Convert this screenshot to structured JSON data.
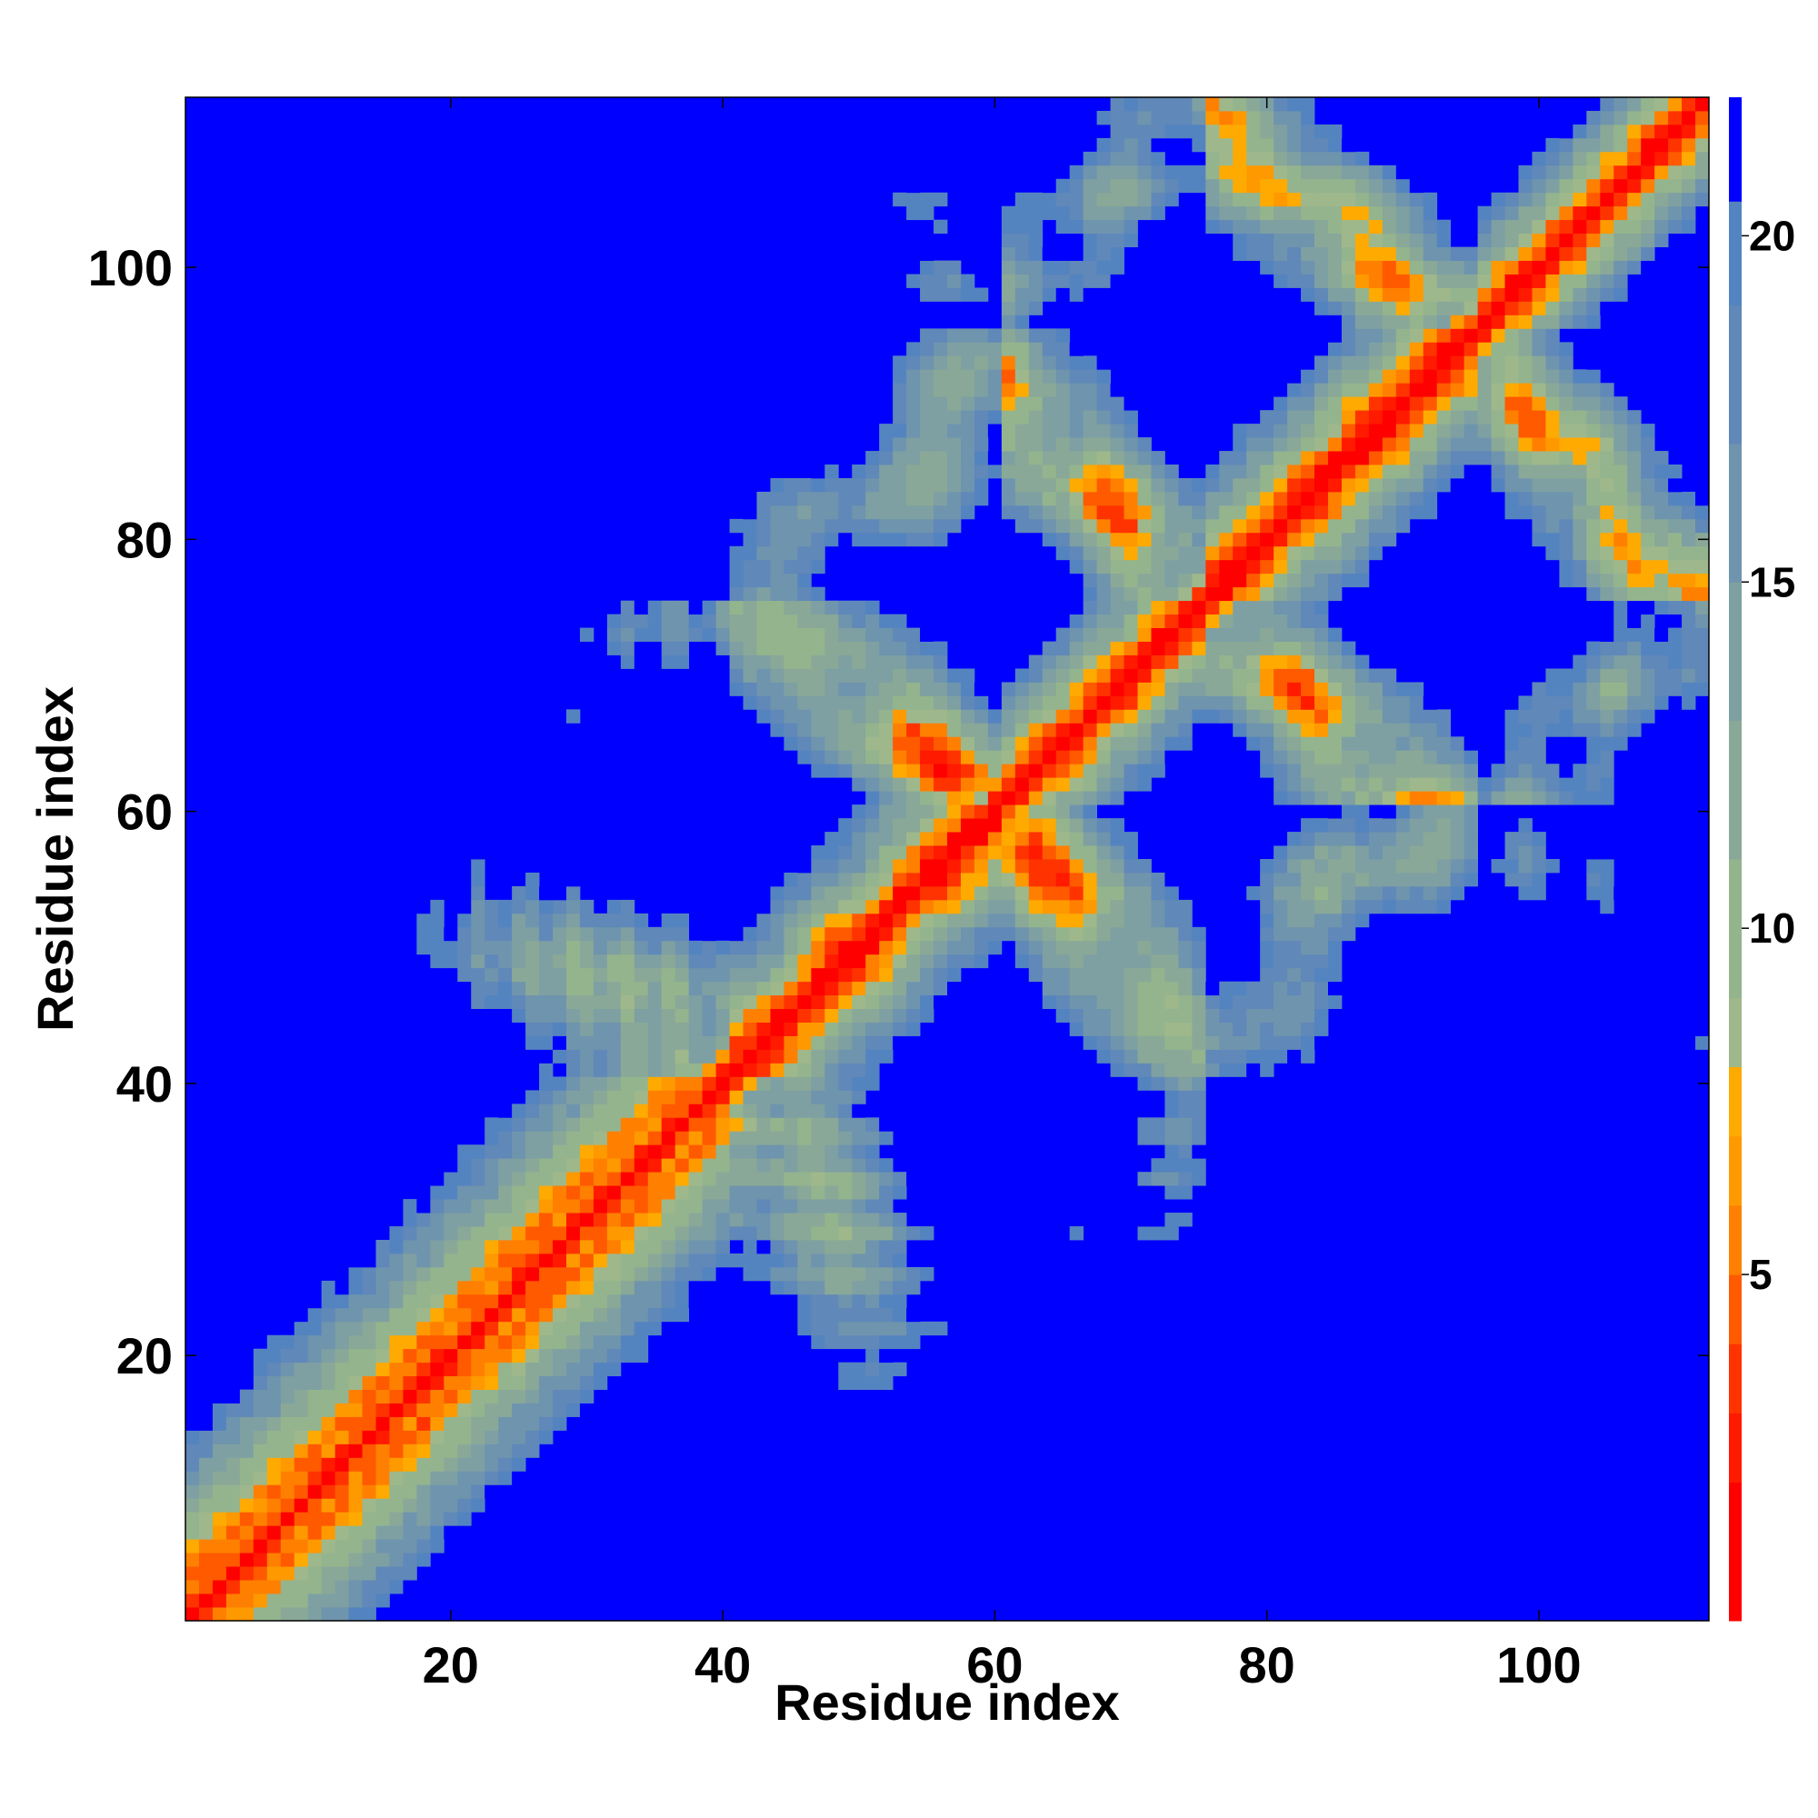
{
  "chart_data": {
    "type": "heatmap",
    "title": "",
    "xlabel": "Residue index",
    "ylabel": "Residue index",
    "n_residues": 112,
    "xlim": [
      1,
      112
    ],
    "ylim": [
      1,
      112
    ],
    "x_ticks": [
      20,
      40,
      60,
      80,
      100
    ],
    "y_ticks": [
      20,
      40,
      60,
      80,
      100
    ],
    "colorbar": {
      "ticks": [
        5,
        10,
        15,
        20
      ],
      "range": [
        0,
        22
      ],
      "levels": [
        {
          "max": 2,
          "color": "#ff0000"
        },
        {
          "max": 3,
          "color": "#ff1a00"
        },
        {
          "max": 4,
          "color": "#ff3300"
        },
        {
          "max": 5,
          "color": "#ff5a00"
        },
        {
          "max": 6,
          "color": "#ff8000"
        },
        {
          "max": 7,
          "color": "#ff9900"
        },
        {
          "max": 8,
          "color": "#ffaa00"
        },
        {
          "max": 9,
          "color": "#9eb88c"
        },
        {
          "max": 11,
          "color": "#94b48e"
        },
        {
          "max": 13,
          "color": "#8aa898"
        },
        {
          "max": 15,
          "color": "#7ea0a2"
        },
        {
          "max": 17,
          "color": "#6f94ae"
        },
        {
          "max": 19,
          "color": "#6088b8"
        },
        {
          "max": 20.5,
          "color": "#5484c0"
        },
        {
          "max": 22,
          "color": "#0000ff"
        }
      ]
    },
    "cutoff_value": 21,
    "colors": {
      "background": "#0000ff",
      "contact": "#ff0000",
      "close": "#ffaa00",
      "mid": "#94b48e",
      "far": "#5c88b8"
    }
  }
}
